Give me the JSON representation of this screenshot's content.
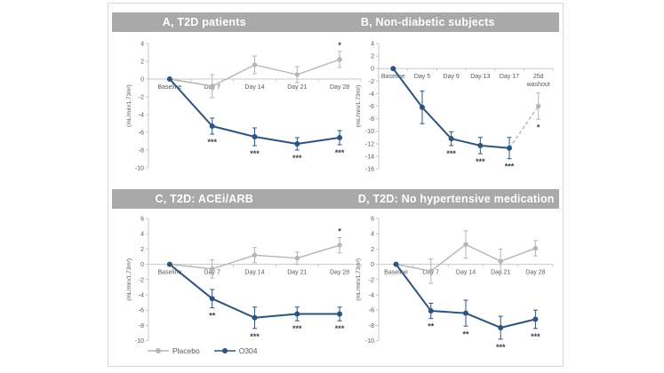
{
  "page": {
    "background": "#ffffff"
  },
  "colors": {
    "o304": "#2e537e",
    "placebo": "#b5b5b5",
    "banner": "#a9a9a9",
    "axis": "#c8c8c8",
    "tick_text": "#595959",
    "star": "#404040",
    "card_border": "#d9d9d9"
  },
  "legend": {
    "items": [
      {
        "label": "Placebo",
        "color_key": "placebo"
      },
      {
        "label": "O304",
        "color_key": "o304"
      }
    ]
  },
  "chart_data": [
    {
      "id": "A",
      "type": "line",
      "title": "A, T2D patients",
      "ylabel": "(mL/min/1,73m²)",
      "ylim": [
        -10,
        4
      ],
      "ytick_step": 2,
      "grid": false,
      "legend_position": "bottom-left-shared",
      "categories": [
        "Baseline",
        "Day 7",
        "Day 14",
        "Day 21",
        "Day 28"
      ],
      "series": [
        {
          "name": "Placebo",
          "color_key": "placebo",
          "style": "solid",
          "values": [
            0,
            -0.8,
            1.6,
            0.5,
            2.2
          ],
          "errors": [
            0,
            1.3,
            1.0,
            0.9,
            0.9
          ],
          "stars_above": [
            "",
            "",
            "",
            "",
            "*"
          ]
        },
        {
          "name": "O304",
          "color_key": "o304",
          "style": "solid",
          "values": [
            0,
            -5.3,
            -6.5,
            -7.3,
            -6.6
          ],
          "errors": [
            0,
            0.9,
            1.0,
            0.7,
            0.8
          ],
          "stars_below": [
            "",
            "***",
            "***",
            "***",
            "***"
          ]
        }
      ]
    },
    {
      "id": "B",
      "type": "line",
      "title": "B, Non-diabetic subjects",
      "ylabel": "(mL/min/1,73m²)",
      "ylim": [
        -16,
        4
      ],
      "ytick_step": 2,
      "grid": false,
      "categories": [
        "Baseline",
        "Day 5",
        "Day 9",
        "Day 13",
        "Day 17",
        "25d\nwashout"
      ],
      "series": [
        {
          "name": "Washout",
          "color_key": "placebo",
          "style": "dashed",
          "values": [
            null,
            null,
            null,
            null,
            -12.7,
            -6.0
          ],
          "errors": [
            null,
            null,
            null,
            null,
            null,
            2.1
          ],
          "stars_below": [
            "",
            "",
            "",
            "",
            "",
            "*"
          ],
          "skip_markers": [
            4
          ]
        },
        {
          "name": "O304",
          "color_key": "o304",
          "style": "solid",
          "values": [
            0,
            -6.2,
            -11.2,
            -12.3,
            -12.7,
            null
          ],
          "errors": [
            0,
            2.6,
            1.1,
            1.3,
            1.7,
            null
          ],
          "stars_below": [
            "",
            "",
            "***",
            "***",
            "***",
            ""
          ]
        }
      ]
    },
    {
      "id": "C",
      "type": "line",
      "title": "C, T2D: ACEi/ARB",
      "ylabel": "(mL/min/1,73m²)",
      "ylim": [
        -10,
        6
      ],
      "ytick_step": 2,
      "grid": false,
      "categories": [
        "Baseline",
        "Day 7",
        "Day 14",
        "Day 21",
        "Day 28"
      ],
      "series": [
        {
          "name": "Placebo",
          "color_key": "placebo",
          "style": "solid",
          "values": [
            0,
            -0.6,
            1.2,
            0.8,
            2.5
          ],
          "errors": [
            0,
            1.2,
            1.0,
            0.8,
            1.0
          ],
          "stars_above": [
            "",
            "",
            "",
            "",
            "*"
          ]
        },
        {
          "name": "O304",
          "color_key": "o304",
          "style": "solid",
          "values": [
            0,
            -4.5,
            -7.0,
            -6.5,
            -6.5
          ],
          "errors": [
            0,
            1.2,
            1.4,
            0.9,
            0.9
          ],
          "stars_below": [
            "",
            "**",
            "***",
            "***",
            "***"
          ]
        }
      ]
    },
    {
      "id": "D",
      "type": "line",
      "title": "D, T2D: No hypertensive medication",
      "ylabel": "(mL/min/1,73m²)",
      "ylim": [
        -10,
        6
      ],
      "ytick_step": 2,
      "grid": false,
      "categories": [
        "Baseline",
        "Day 7",
        "Day 14",
        "Day 21",
        "Day 28"
      ],
      "series": [
        {
          "name": "Placebo",
          "color_key": "placebo",
          "style": "solid",
          "values": [
            0,
            -0.9,
            2.6,
            0.4,
            2.1
          ],
          "errors": [
            0,
            1.6,
            1.8,
            1.6,
            1.0
          ]
        },
        {
          "name": "O304",
          "color_key": "o304",
          "style": "solid",
          "values": [
            0,
            -6.1,
            -6.4,
            -8.3,
            -7.2
          ],
          "errors": [
            0,
            1.0,
            1.7,
            1.5,
            1.2
          ],
          "stars_below": [
            "",
            "**",
            "**",
            "***",
            "***"
          ]
        }
      ]
    }
  ]
}
